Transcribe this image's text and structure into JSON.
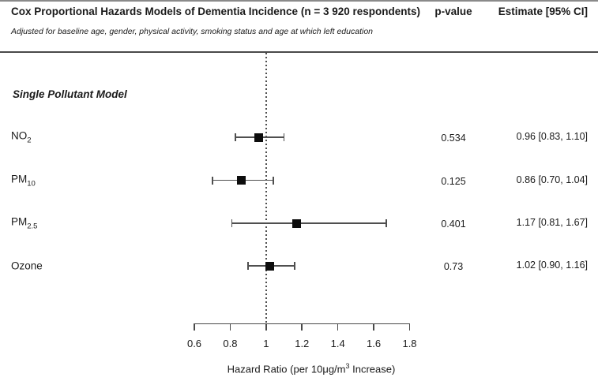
{
  "header": {
    "title": "Cox Proportional Hazards Models of Dementia Incidence (n = 3 920 respondents)",
    "p_value_label": "p-value",
    "estimate_label": "Estimate [95% CI]",
    "subtitle": "Adjusted for baseline age, gender, physical activity, smoking status and age at which left education"
  },
  "section": {
    "label": "Single Pollutant Model"
  },
  "axis": {
    "label_prefix": "Hazard Ratio (per 10μg/m",
    "label_sup": "3",
    "label_suffix": " Increase)"
  },
  "chart_data": {
    "type": "forest",
    "title": "Cox Proportional Hazards Models of Dementia Incidence (n = 3 920 respondents)",
    "subtitle": "Adjusted for baseline age, gender, physical activity, smoking status and age at which left education",
    "section": "Single Pollutant Model",
    "xlabel": "Hazard Ratio (per 10μg/m³ Increase)",
    "column_headers": [
      "p-value",
      "Estimate [95% CI]"
    ],
    "xlim": [
      0.6,
      1.8
    ],
    "reference_line": 1.0,
    "x_ticks": [
      {
        "value": 0.6,
        "label": "0.6"
      },
      {
        "value": 0.8,
        "label": "0.8"
      },
      {
        "value": 1.0,
        "label": "1"
      },
      {
        "value": 1.2,
        "label": "1.2"
      },
      {
        "value": 1.4,
        "label": "1.4"
      },
      {
        "value": 1.6,
        "label": "1.6"
      },
      {
        "value": 1.8,
        "label": "1.8"
      }
    ],
    "rows": [
      {
        "label_main": "NO",
        "label_sub": "2",
        "p_value": "0.534",
        "estimate": 0.96,
        "ci_low": 0.83,
        "ci_high": 1.1,
        "estimate_text": "0.96 [0.83, 1.10]"
      },
      {
        "label_main": "PM",
        "label_sub": "10",
        "p_value": "0.125",
        "estimate": 0.86,
        "ci_low": 0.7,
        "ci_high": 1.04,
        "estimate_text": "0.86 [0.70, 1.04]"
      },
      {
        "label_main": "PM",
        "label_sub": "2.5",
        "p_value": "0.401",
        "estimate": 1.17,
        "ci_low": 0.81,
        "ci_high": 1.67,
        "estimate_text": "1.17 [0.81, 1.67]"
      },
      {
        "label_main": "Ozone",
        "label_sub": "",
        "p_value": "0.73",
        "estimate": 1.02,
        "ci_low": 0.9,
        "ci_high": 1.16,
        "estimate_text": "1.02 [0.90, 1.16]"
      }
    ]
  }
}
